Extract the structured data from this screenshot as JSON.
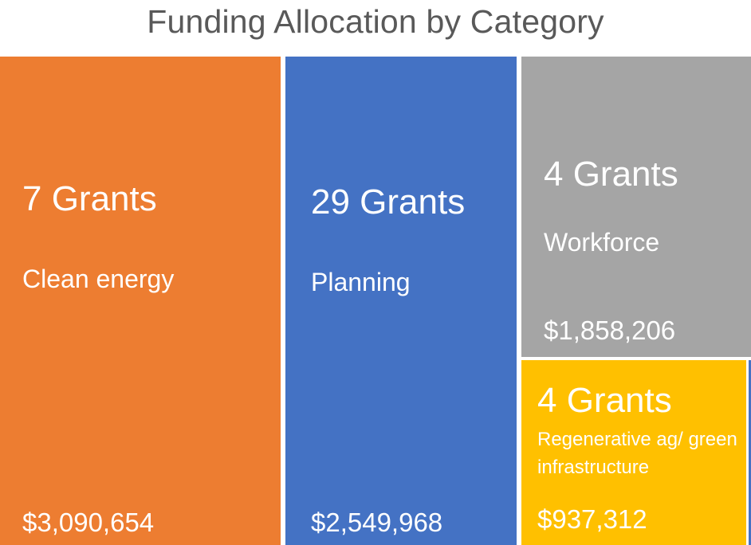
{
  "chart_data": {
    "type": "treemap",
    "title": "Funding Allocation by Category",
    "items": [
      {
        "id": "clean",
        "count": "7 Grants",
        "label": "Clean energy",
        "amount": "$3,090,654",
        "value": 3090654,
        "color": "#ED7D31"
      },
      {
        "id": "planning",
        "count": "29 Grants",
        "label": "Planning",
        "amount": "$2,549,968",
        "value": 2549968,
        "color": "#4472C4"
      },
      {
        "id": "workforce",
        "count": "4 Grants",
        "label": "Workforce",
        "amount": "$1,858,206",
        "value": 1858206,
        "color": "#A5A5A5"
      },
      {
        "id": "regen",
        "count": "4 Grants",
        "label": "Regenerative ag/ green infrastructure",
        "amount": "$937,312",
        "value": 937312,
        "color": "#FFC000"
      }
    ]
  }
}
